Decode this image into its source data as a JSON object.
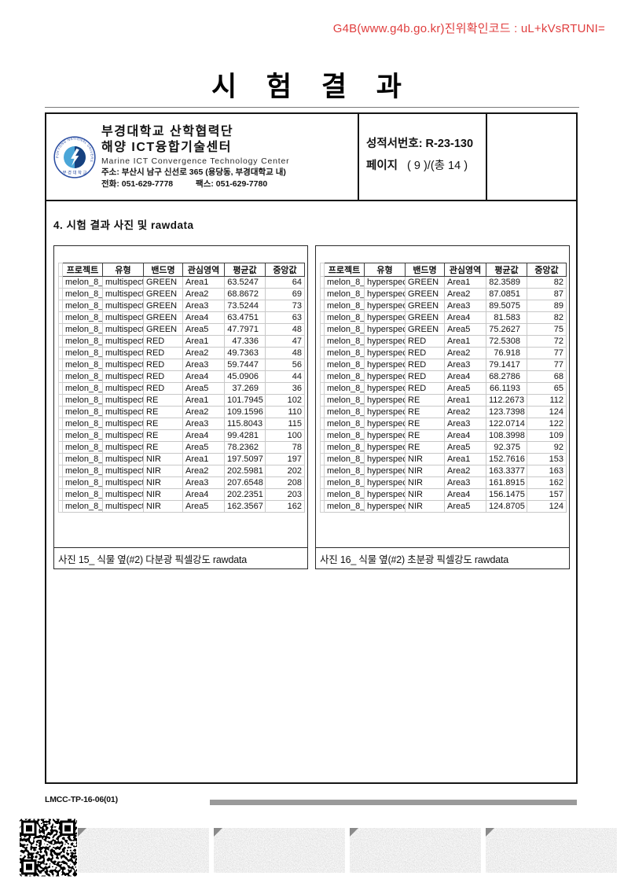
{
  "verification_notice": "G4B(www.g4b.go.kr)진위확인코드 : uL+kVsRTUNI=",
  "title": "시 험 결 과",
  "org": {
    "logo_ring_text": "PUKYONG NATIONAL UNIVERSITY",
    "logo_bottom_text": "부 경 대 학 교",
    "name_line1": "부경대학교 산학협력단",
    "name_line2": "해양 ICT융합기술센터",
    "name_en": "Marine ICT Convergence Technology Center",
    "address": "주소: 부산시 남구 신선로 365 (용당동, 부경대학교 내)",
    "phone": "전화: 051-629-7778",
    "fax": "팩스:  051-629-7780"
  },
  "report": {
    "number_line": "성적서번호: R-23-130",
    "page_label": "페이지",
    "page_value": "( 9 )/(총  14 )"
  },
  "section_title": "4. 시험 결과 사진 및 rawdata",
  "tables": [
    {
      "caption": "사진 15_ 식물 옆(#2) 다분광 픽셀강도 rawdata",
      "headers": [
        "프로젝트",
        "유형",
        "밴드명",
        "관심영역",
        "평균값",
        "중앙값"
      ],
      "rows": [
        [
          "melon_8_2",
          "multispect",
          "GREEN",
          "Area1",
          "63.5247",
          "64"
        ],
        [
          "melon_8_2",
          "multispect",
          "GREEN",
          "Area2",
          "68.8672",
          "69"
        ],
        [
          "melon_8_2",
          "multispect",
          "GREEN",
          "Area3",
          "73.5244",
          "73"
        ],
        [
          "melon_8_2",
          "multispect",
          "GREEN",
          "Area4",
          "63.4751",
          "63"
        ],
        [
          "melon_8_2",
          "multispect",
          "GREEN",
          "Area5",
          "47.7971",
          "48"
        ],
        [
          "melon_8_2",
          "multispect",
          "RED",
          "Area1",
          "47.336",
          "47"
        ],
        [
          "melon_8_2",
          "multispect",
          "RED",
          "Area2",
          "49.7363",
          "48"
        ],
        [
          "melon_8_2",
          "multispect",
          "RED",
          "Area3",
          "59.7447",
          "56"
        ],
        [
          "melon_8_2",
          "multispect",
          "RED",
          "Area4",
          "45.0906",
          "44"
        ],
        [
          "melon_8_2",
          "multispect",
          "RED",
          "Area5",
          "37.269",
          "36"
        ],
        [
          "melon_8_2",
          "multispect",
          "RE",
          "Area1",
          "101.7945",
          "102"
        ],
        [
          "melon_8_2",
          "multispect",
          "RE",
          "Area2",
          "109.1596",
          "110"
        ],
        [
          "melon_8_2",
          "multispect",
          "RE",
          "Area3",
          "115.8043",
          "115"
        ],
        [
          "melon_8_2",
          "multispect",
          "RE",
          "Area4",
          "99.4281",
          "100"
        ],
        [
          "melon_8_2",
          "multispect",
          "RE",
          "Area5",
          "78.2362",
          "78"
        ],
        [
          "melon_8_2",
          "multispect",
          "NIR",
          "Area1",
          "197.5097",
          "197"
        ],
        [
          "melon_8_2",
          "multispect",
          "NIR",
          "Area2",
          "202.5981",
          "202"
        ],
        [
          "melon_8_2",
          "multispect",
          "NIR",
          "Area3",
          "207.6548",
          "208"
        ],
        [
          "melon_8_2",
          "multispect",
          "NIR",
          "Area4",
          "202.2351",
          "203"
        ],
        [
          "melon_8_2",
          "multispect",
          "NIR",
          "Area5",
          "162.3567",
          "162"
        ]
      ]
    },
    {
      "caption": "사진 16_ 식물 옆(#2) 초분광 픽셀강도 rawdata",
      "headers": [
        "프로젝트",
        "유형",
        "밴드명",
        "관심영역",
        "평균값",
        "중앙값"
      ],
      "rows": [
        [
          "melon_8_2",
          "hyperspec",
          "GREEN",
          "Area1",
          "82.3589",
          "82"
        ],
        [
          "melon_8_2",
          "hyperspec",
          "GREEN",
          "Area2",
          "87.0851",
          "87"
        ],
        [
          "melon_8_2",
          "hyperspec",
          "GREEN",
          "Area3",
          "89.5075",
          "89"
        ],
        [
          "melon_8_2",
          "hyperspec",
          "GREEN",
          "Area4",
          "81.583",
          "82"
        ],
        [
          "melon_8_2",
          "hyperspec",
          "GREEN",
          "Area5",
          "75.2627",
          "75"
        ],
        [
          "melon_8_2",
          "hyperspec",
          "RED",
          "Area1",
          "72.5308",
          "72"
        ],
        [
          "melon_8_2",
          "hyperspec",
          "RED",
          "Area2",
          "76.918",
          "77"
        ],
        [
          "melon_8_2",
          "hyperspec",
          "RED",
          "Area3",
          "79.1417",
          "77"
        ],
        [
          "melon_8_2",
          "hyperspec",
          "RED",
          "Area4",
          "68.2786",
          "68"
        ],
        [
          "melon_8_2",
          "hyperspec",
          "RED",
          "Area5",
          "66.1193",
          "65"
        ],
        [
          "melon_8_2",
          "hyperspec",
          "RE",
          "Area1",
          "112.2673",
          "112"
        ],
        [
          "melon_8_2",
          "hyperspec",
          "RE",
          "Area2",
          "123.7398",
          "124"
        ],
        [
          "melon_8_2",
          "hyperspec",
          "RE",
          "Area3",
          "122.0714",
          "122"
        ],
        [
          "melon_8_2",
          "hyperspec",
          "RE",
          "Area4",
          "108.3998",
          "109"
        ],
        [
          "melon_8_2",
          "hyperspec",
          "RE",
          "Area5",
          "92.375",
          "92"
        ],
        [
          "melon_8_2",
          "hyperspec",
          "NIR",
          "Area1",
          "152.7616",
          "153"
        ],
        [
          "melon_8_2",
          "hyperspec",
          "NIR",
          "Area2",
          "163.3377",
          "163"
        ],
        [
          "melon_8_2",
          "hyperspec",
          "NIR",
          "Area3",
          "161.8915",
          "162"
        ],
        [
          "melon_8_2",
          "hyperspec",
          "NIR",
          "Area4",
          "156.1475",
          "157"
        ],
        [
          "melon_8_2",
          "hyperspec",
          "NIR",
          "Area5",
          "124.8705",
          "124"
        ]
      ]
    }
  ],
  "footer": {
    "doc_code": "LMCC-TP-16-06(01)"
  },
  "colors": {
    "verify_red": "#e03e3e",
    "logo_navy": "#2b4ea2",
    "logo_light_blue": "#4aa6d8",
    "grid_gray": "#c8c8c8",
    "bar_gray": "#9a9a9a"
  }
}
